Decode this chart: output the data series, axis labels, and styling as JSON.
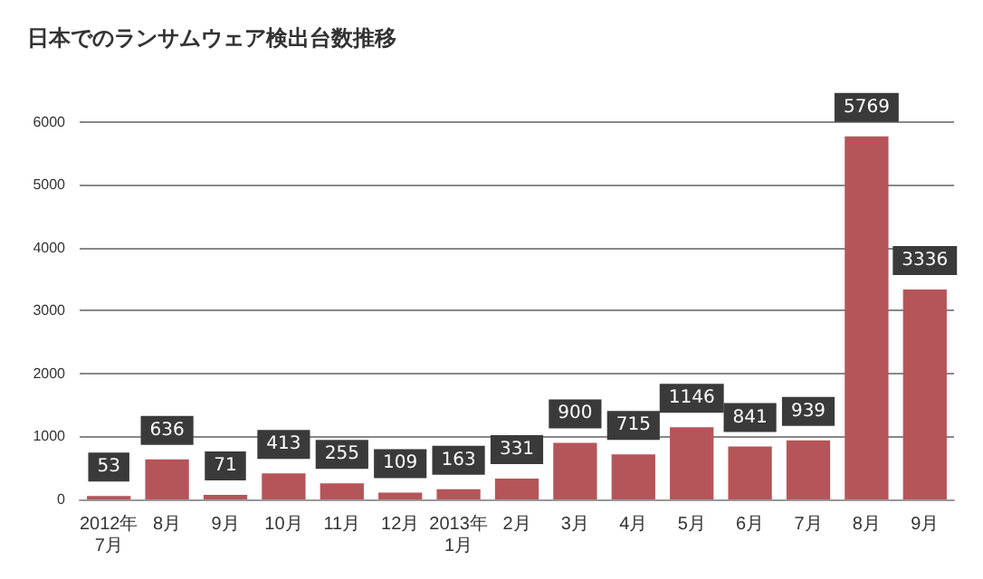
{
  "chart_data": {
    "type": "bar",
    "title": "日本でのランサムウェア検出台数推移",
    "categories": [
      "2012年\n7月",
      "8月",
      "9月",
      "10月",
      "11月",
      "12月",
      "2013年\n1月",
      "2月",
      "3月",
      "4月",
      "5月",
      "6月",
      "7月",
      "8月",
      "9月"
    ],
    "values": [
      53,
      636,
      71,
      413,
      255,
      109,
      163,
      331,
      900,
      715,
      1146,
      841,
      939,
      5769,
      3336
    ],
    "color": "#b5555a",
    "ylim": [
      0,
      6500
    ],
    "yticks": [
      0,
      1000,
      2000,
      3000,
      4000,
      5000,
      6000
    ],
    "grid": "y",
    "data_labels": true
  }
}
